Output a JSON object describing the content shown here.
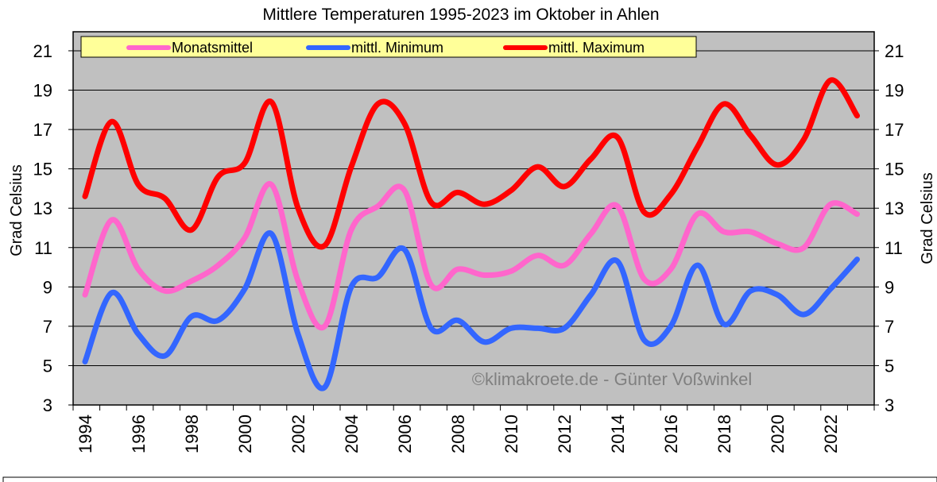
{
  "chart_data": {
    "type": "line",
    "title": "Mittlere Temperaturen 1995-2023 im Oktober in Ahlen",
    "ylabel": "Grad Celsius",
    "ylabel_right": "Grad Celsius",
    "ylim": [
      3,
      22
    ],
    "yticks": [
      3,
      5,
      7,
      9,
      11,
      13,
      15,
      17,
      19,
      21
    ],
    "xticks": [
      1994,
      1996,
      1998,
      2000,
      2002,
      2004,
      2006,
      2008,
      2010,
      2012,
      2014,
      2016,
      2018,
      2020,
      2022
    ],
    "grid": true,
    "legend": "top",
    "watermark": "©klimakroete.de - Günter Voßwinkel",
    "x": [
      1994,
      1995,
      1996,
      1997,
      1998,
      1999,
      2000,
      2001,
      2002,
      2003,
      2004,
      2005,
      2006,
      2007,
      2008,
      2009,
      2010,
      2011,
      2012,
      2013,
      2014,
      2015,
      2016,
      2017,
      2018,
      2019,
      2020,
      2021,
      2022,
      2023
    ],
    "series": [
      {
        "name": "Monatsmittel",
        "color": "#ff66cc",
        "values": [
          8.6,
          12.4,
          9.9,
          8.8,
          9.3,
          10.1,
          11.5,
          14.2,
          9.3,
          7.0,
          11.9,
          13.1,
          13.9,
          9.1,
          9.9,
          9.6,
          9.8,
          10.6,
          10.1,
          11.7,
          13.1,
          9.4,
          9.9,
          12.7,
          11.8,
          11.8,
          11.2,
          11.0,
          13.2,
          12.7
        ]
      },
      {
        "name": "mittl. Minimum",
        "color": "#3366ff",
        "values": [
          5.2,
          8.7,
          6.6,
          5.5,
          7.5,
          7.3,
          8.9,
          11.7,
          6.6,
          3.9,
          9.0,
          9.5,
          10.9,
          6.9,
          7.3,
          6.2,
          6.9,
          6.9,
          6.9,
          8.6,
          10.3,
          6.3,
          7.0,
          10.1,
          7.1,
          8.8,
          8.6,
          7.6,
          8.9,
          10.4
        ]
      },
      {
        "name": "mittl. Maximum",
        "color": "#ff0000",
        "values": [
          13.6,
          17.4,
          14.2,
          13.5,
          11.9,
          14.6,
          15.3,
          18.4,
          13.0,
          11.1,
          15.1,
          18.3,
          17.3,
          13.3,
          13.8,
          13.2,
          13.9,
          15.1,
          14.1,
          15.5,
          16.6,
          12.8,
          13.7,
          16.1,
          18.3,
          16.7,
          15.2,
          16.5,
          19.5,
          17.7
        ]
      }
    ]
  }
}
